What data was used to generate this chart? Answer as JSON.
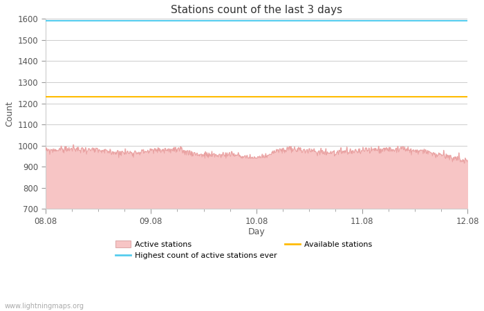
{
  "title": "Stations count of the last 3 days",
  "xlabel": "Day",
  "ylabel": "Count",
  "ylim": [
    700,
    1600
  ],
  "yticks": [
    700,
    800,
    900,
    1000,
    1100,
    1200,
    1300,
    1400,
    1500,
    1600
  ],
  "x_tick_labels": [
    "08.08",
    "09.08",
    "10.08",
    "11.08",
    "12.08"
  ],
  "x_tick_positions": [
    0,
    1,
    2,
    3,
    4
  ],
  "highest_ever": 1590,
  "available_stations": 1230,
  "active_stations_mean": 975,
  "active_stations_color_fill": "#f7c5c5",
  "active_stations_color_line": "#e8a0a0",
  "highest_ever_color": "#55ccee",
  "available_color": "#ffbb00",
  "watermark": "www.lightningmaps.org",
  "bg_color": "#ffffff",
  "grid_color": "#cccccc",
  "num_points": 864,
  "x_start": 0.0,
  "x_end": 4.0
}
